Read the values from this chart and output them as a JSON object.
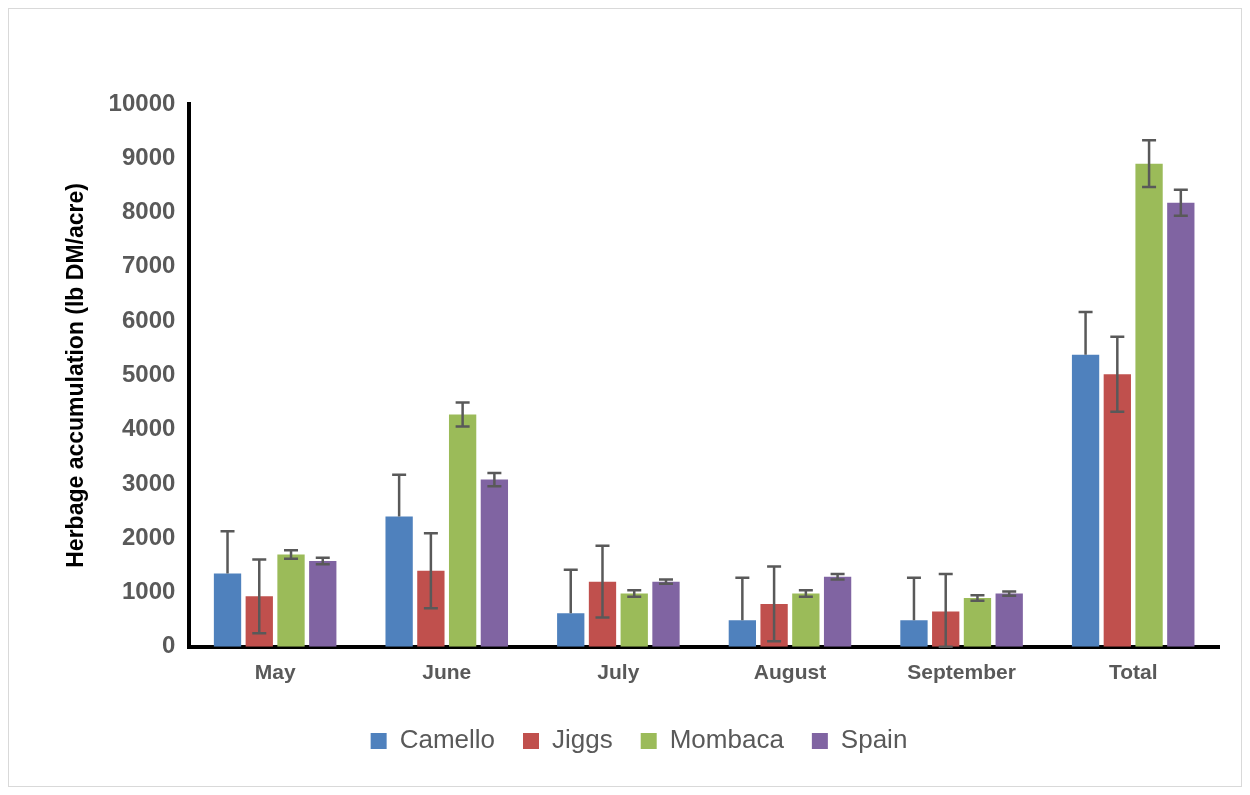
{
  "chart_data": {
    "type": "bar",
    "ylabel": "Herbage accumulation (lb DM/acre)",
    "categories": [
      "May",
      "June",
      "July",
      "August",
      "September",
      "Total"
    ],
    "series": [
      {
        "name": "Camello",
        "color": "#4f81bd",
        "values": [
          1350,
          2400,
          620,
          490,
          490,
          5380
        ],
        "errors": [
          [
            1350,
            2130
          ],
          [
            2400,
            3170
          ],
          [
            620,
            1420
          ],
          [
            490,
            1270
          ],
          [
            490,
            1270
          ],
          [
            5380,
            6170
          ]
        ]
      },
      {
        "name": "Jiggs",
        "color": "#c0504d",
        "values": [
          930,
          1400,
          1200,
          790,
          650,
          5020
        ],
        "errors": [
          680,
          690,
          660,
          690,
          [
            0,
            1340
          ],
          690
        ]
      },
      {
        "name": "Mombaca",
        "color": "#9bbb59",
        "values": [
          1700,
          4280,
          980,
          980,
          900,
          8900
        ],
        "errors": [
          80,
          220,
          60,
          60,
          50,
          430
        ]
      },
      {
        "name": "Spain",
        "color": "#8064a2",
        "values": [
          1580,
          3080,
          1200,
          1290,
          980,
          8180
        ],
        "errors": [
          60,
          120,
          40,
          50,
          40,
          240
        ]
      }
    ],
    "ylim": [
      0,
      10000
    ],
    "yticks": [
      0,
      1000,
      2000,
      3000,
      4000,
      5000,
      6000,
      7000,
      8000,
      9000,
      10000
    ],
    "grid": false,
    "legend": "bottom"
  }
}
